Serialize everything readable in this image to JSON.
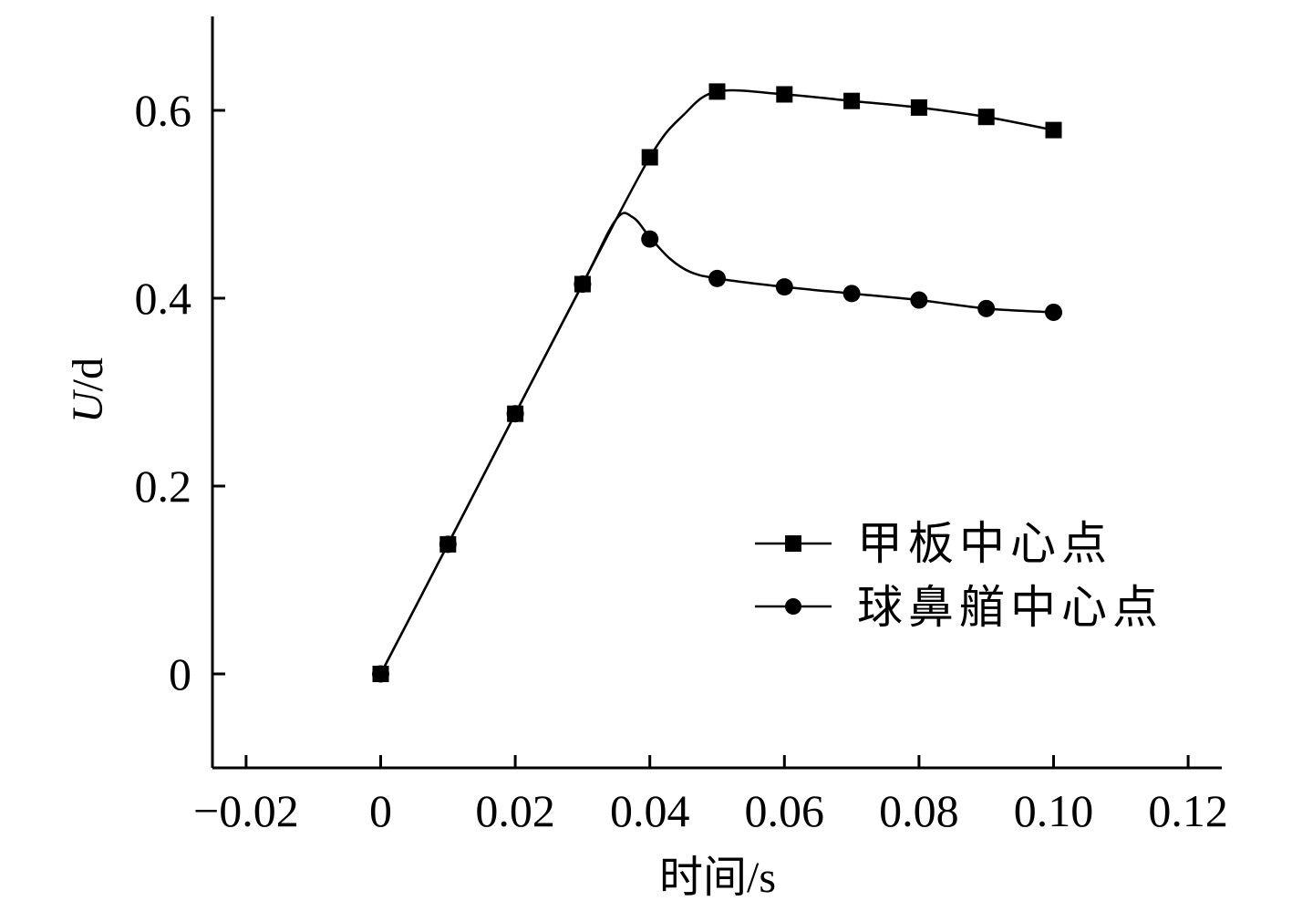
{
  "chart_data": {
    "type": "line",
    "xlabel": "时间/s",
    "ylabel_italic": "U",
    "ylabel_rest": "/d",
    "xlim": [
      -0.025,
      0.125
    ],
    "ylim": [
      -0.1,
      0.7
    ],
    "x_ticks": [
      -0.02,
      0,
      0.02,
      0.04,
      0.06,
      0.08,
      0.1,
      0.12
    ],
    "x_tick_labels": [
      "−0.02",
      "0",
      "0.02",
      "0.04",
      "0.06",
      "0.08",
      "0.10",
      "0.12"
    ],
    "y_ticks": [
      0,
      0.2,
      0.4,
      0.6
    ],
    "y_tick_labels": [
      "0",
      "0.2",
      "0.4",
      "0.6"
    ],
    "legend_position": "lower-right",
    "series": [
      {
        "name": "甲板中心点",
        "marker": "square",
        "color": "#000000",
        "x": [
          0,
          0.01,
          0.02,
          0.03,
          0.04,
          0.05,
          0.06,
          0.07,
          0.08,
          0.09,
          0.1
        ],
        "y": [
          0.0,
          0.138,
          0.277,
          0.415,
          0.55,
          0.62,
          0.617,
          0.61,
          0.603,
          0.593,
          0.579
        ],
        "curve_x": [
          0,
          0.01,
          0.02,
          0.03,
          0.04,
          0.045,
          0.05,
          0.06,
          0.07,
          0.08,
          0.09,
          0.1
        ],
        "curve_y": [
          0.0,
          0.138,
          0.277,
          0.415,
          0.55,
          0.595,
          0.62,
          0.617,
          0.61,
          0.603,
          0.593,
          0.579
        ]
      },
      {
        "name": "球鼻艏中心点",
        "marker": "circle",
        "color": "#000000",
        "x": [
          0,
          0.01,
          0.02,
          0.03,
          0.04,
          0.05,
          0.06,
          0.07,
          0.08,
          0.09,
          0.1
        ],
        "y": [
          0.0,
          0.138,
          0.277,
          0.415,
          0.463,
          0.421,
          0.412,
          0.405,
          0.398,
          0.389,
          0.385
        ],
        "curve_x": [
          0,
          0.01,
          0.02,
          0.03,
          0.035,
          0.0375,
          0.04,
          0.043,
          0.046,
          0.05,
          0.06,
          0.07,
          0.08,
          0.09,
          0.1
        ],
        "curve_y": [
          0.0,
          0.138,
          0.277,
          0.415,
          0.484,
          0.486,
          0.465,
          0.442,
          0.428,
          0.421,
          0.412,
          0.405,
          0.398,
          0.389,
          0.385
        ]
      }
    ]
  }
}
